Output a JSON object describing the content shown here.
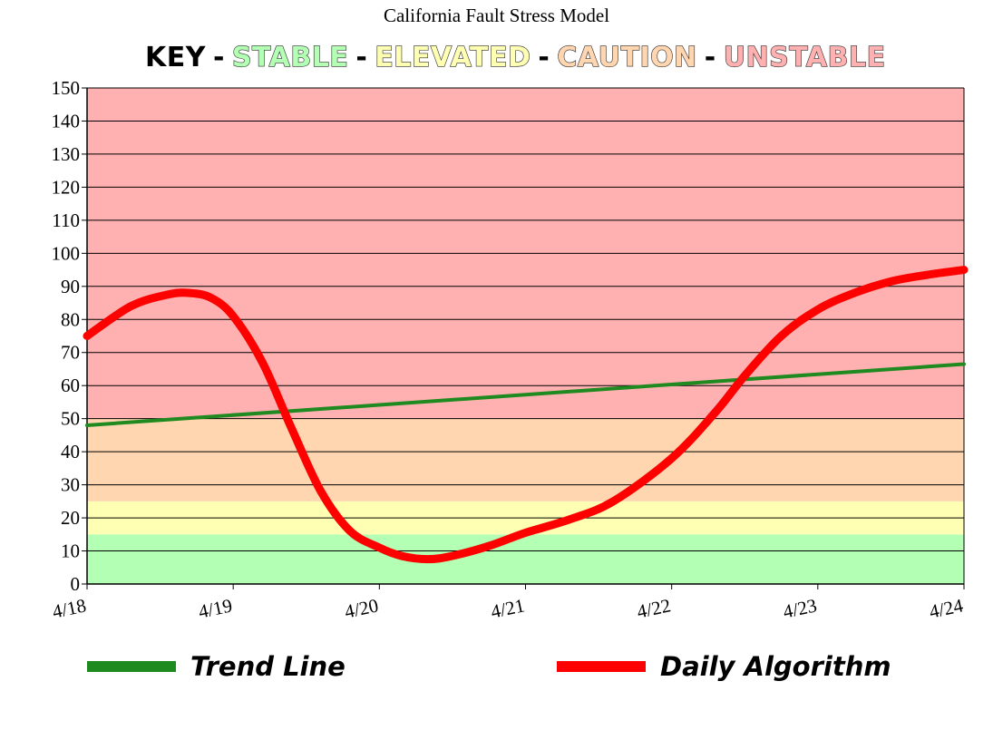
{
  "chart_data": {
    "type": "line",
    "title": "California Fault Stress Model",
    "key": {
      "label": "KEY",
      "separator": "-",
      "zones": [
        {
          "name": "STABLE",
          "color": "#b3ffb3",
          "from": 0,
          "to": 15
        },
        {
          "name": "ELEVATED",
          "color": "#ffffb3",
          "from": 15,
          "to": 25
        },
        {
          "name": "CAUTION",
          "color": "#ffd6b0",
          "from": 25,
          "to": 50
        },
        {
          "name": "UNSTABLE",
          "color": "#ffb0b0",
          "from": 50,
          "to": 150
        }
      ]
    },
    "x_categories": [
      "4/18",
      "4/19",
      "4/20",
      "4/21",
      "4/22",
      "4/23",
      "4/24"
    ],
    "ylim": [
      0,
      150
    ],
    "y_ticks": [
      0,
      10,
      20,
      30,
      40,
      50,
      60,
      70,
      80,
      90,
      100,
      110,
      120,
      130,
      140,
      150
    ],
    "grid": true,
    "legend_position": "bottom",
    "series": [
      {
        "name": "Trend Line",
        "color": "#1f8a1f",
        "x": [
          0,
          6
        ],
        "y": [
          48,
          66.5
        ]
      },
      {
        "name": "Daily Algorithm",
        "color": "#ff0000",
        "x": [
          0,
          0.3,
          0.55,
          0.7,
          0.85,
          1.0,
          1.2,
          1.4,
          1.6,
          1.8,
          2.0,
          2.15,
          2.33,
          2.5,
          2.75,
          3.0,
          3.3,
          3.6,
          4.0,
          4.3,
          4.5,
          4.75,
          5.0,
          5.25,
          5.5,
          5.75,
          6.0
        ],
        "y": [
          75,
          84,
          87.5,
          88,
          86.5,
          81,
          67,
          47,
          28,
          16,
          11,
          8.5,
          7.5,
          8.5,
          11.5,
          15.5,
          19.5,
          25,
          38,
          52,
          63,
          75,
          83,
          88,
          91.5,
          93.5,
          95
        ]
      }
    ]
  }
}
